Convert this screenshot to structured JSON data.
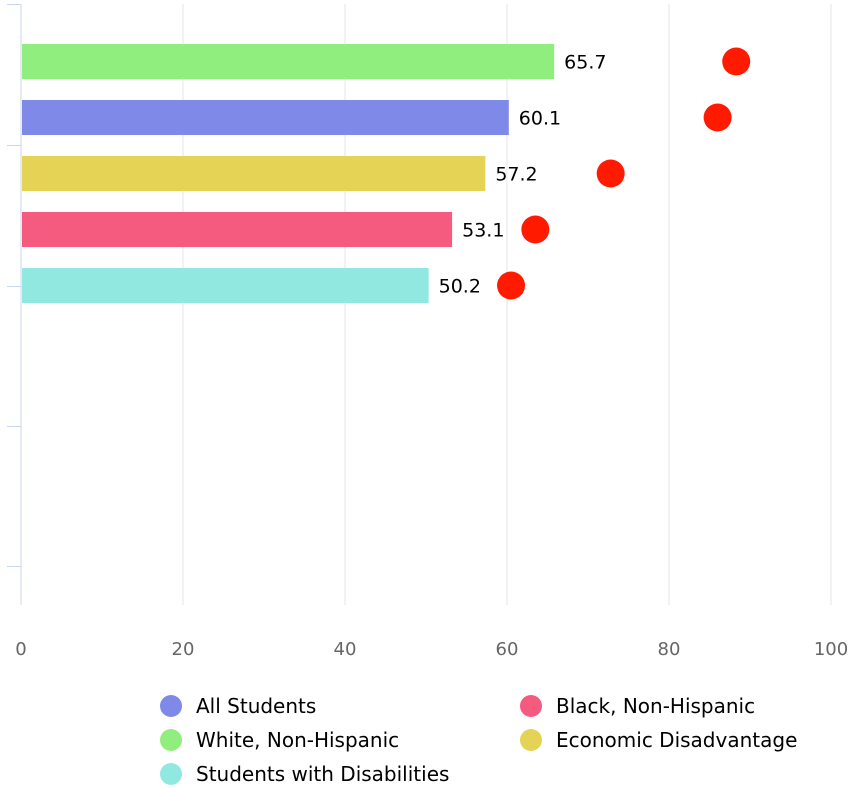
{
  "chart_data": {
    "type": "bar",
    "orientation": "horizontal",
    "categories": [
      "White, Non-Hispanic",
      "All Students",
      "Economic Disadvantage",
      "Black, Non-Hispanic",
      "Students with Disabilities"
    ],
    "values": [
      65.7,
      60.1,
      57.2,
      53.1,
      50.2
    ],
    "value_labels": [
      "65.7",
      "60.1",
      "57.2",
      "53.1",
      "50.2"
    ],
    "targets": [
      88.3,
      86.0,
      72.8,
      63.5,
      60.5
    ],
    "bar_colors": [
      "#90ee7e",
      "#7f89e8",
      "#e4d354",
      "#f45b7f",
      "#91e8e1"
    ],
    "target_color": "#ff1a00",
    "xlim": [
      0,
      100
    ],
    "x_ticks": [
      "0",
      "20",
      "40",
      "60",
      "80",
      "100"
    ],
    "grid": true,
    "legend": {
      "placement": "bottom",
      "items": [
        {
          "label": "All Students",
          "color": "#7f89e8"
        },
        {
          "label": "Black, Non-Hispanic",
          "color": "#f45b7f"
        },
        {
          "label": "White, Non-Hispanic",
          "color": "#90ee7e"
        },
        {
          "label": "Economic Disadvantage",
          "color": "#e4d354"
        },
        {
          "label": "Students with Disabilities",
          "color": "#91e8e1"
        }
      ]
    }
  }
}
